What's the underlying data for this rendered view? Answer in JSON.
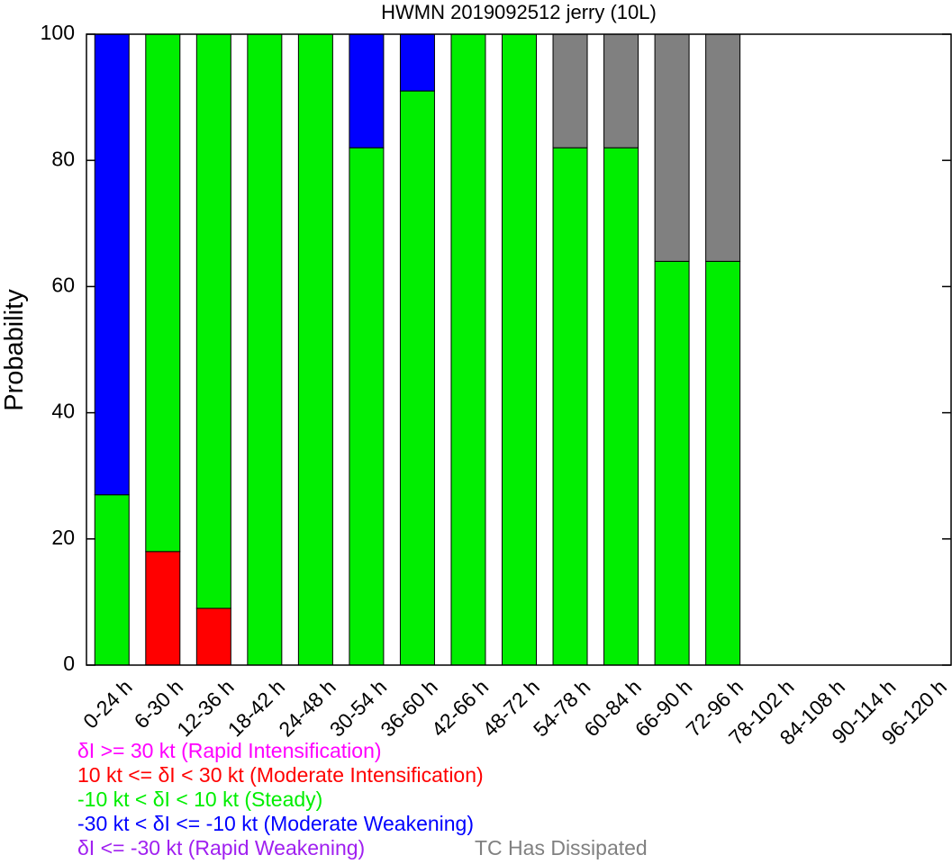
{
  "chart_data": {
    "type": "bar",
    "stacked": true,
    "title": "HWMN 2019092512 jerry (10L)",
    "xlabel": "",
    "ylabel": "Probability",
    "ylim": [
      0,
      100
    ],
    "yticks": [
      0,
      20,
      40,
      60,
      80,
      100
    ],
    "grid": false,
    "categories": [
      "0-24 h",
      "6-30 h",
      "12-36 h",
      "18-42 h",
      "24-48 h",
      "30-54 h",
      "36-60 h",
      "42-66 h",
      "48-72 h",
      "54-78 h",
      "60-84 h",
      "66-90 h",
      "72-96 h",
      "78-102 h",
      "84-108 h",
      "90-114 h",
      "96-120 h"
    ],
    "series": [
      {
        "name": "δI >= 30 kt (Rapid Intensification)",
        "color": "#ff00ff",
        "values": [
          0,
          0,
          0,
          0,
          0,
          0,
          0,
          0,
          0,
          0,
          0,
          0,
          0,
          0,
          0,
          0,
          0
        ]
      },
      {
        "name": "10 kt <= δI < 30 kt (Moderate Intensification)",
        "color": "#ff0000",
        "values": [
          0,
          18,
          9,
          0,
          0,
          0,
          0,
          0,
          0,
          0,
          0,
          0,
          0,
          0,
          0,
          0,
          0
        ]
      },
      {
        "name": "-10 kt < δI < 10 kt (Steady)",
        "color": "#00ee00",
        "values": [
          27,
          82,
          91,
          100,
          100,
          82,
          91,
          100,
          100,
          82,
          82,
          64,
          64,
          0,
          0,
          0,
          0
        ]
      },
      {
        "name": "-30 kt < δI <= -10 kt (Moderate Weakening)",
        "color": "#0000ff",
        "values": [
          73,
          0,
          0,
          0,
          0,
          18,
          9,
          0,
          0,
          0,
          0,
          0,
          0,
          0,
          0,
          0,
          0
        ]
      },
      {
        "name": "δI <= -30 kt (Rapid Weakening)",
        "color": "#a020f0",
        "values": [
          0,
          0,
          0,
          0,
          0,
          0,
          0,
          0,
          0,
          0,
          0,
          0,
          0,
          0,
          0,
          0,
          0
        ]
      },
      {
        "name": "TC Has Dissipated",
        "color": "#808080",
        "values": [
          0,
          0,
          0,
          0,
          0,
          0,
          0,
          0,
          0,
          18,
          18,
          36,
          36,
          0,
          0,
          0,
          0
        ]
      }
    ]
  }
}
